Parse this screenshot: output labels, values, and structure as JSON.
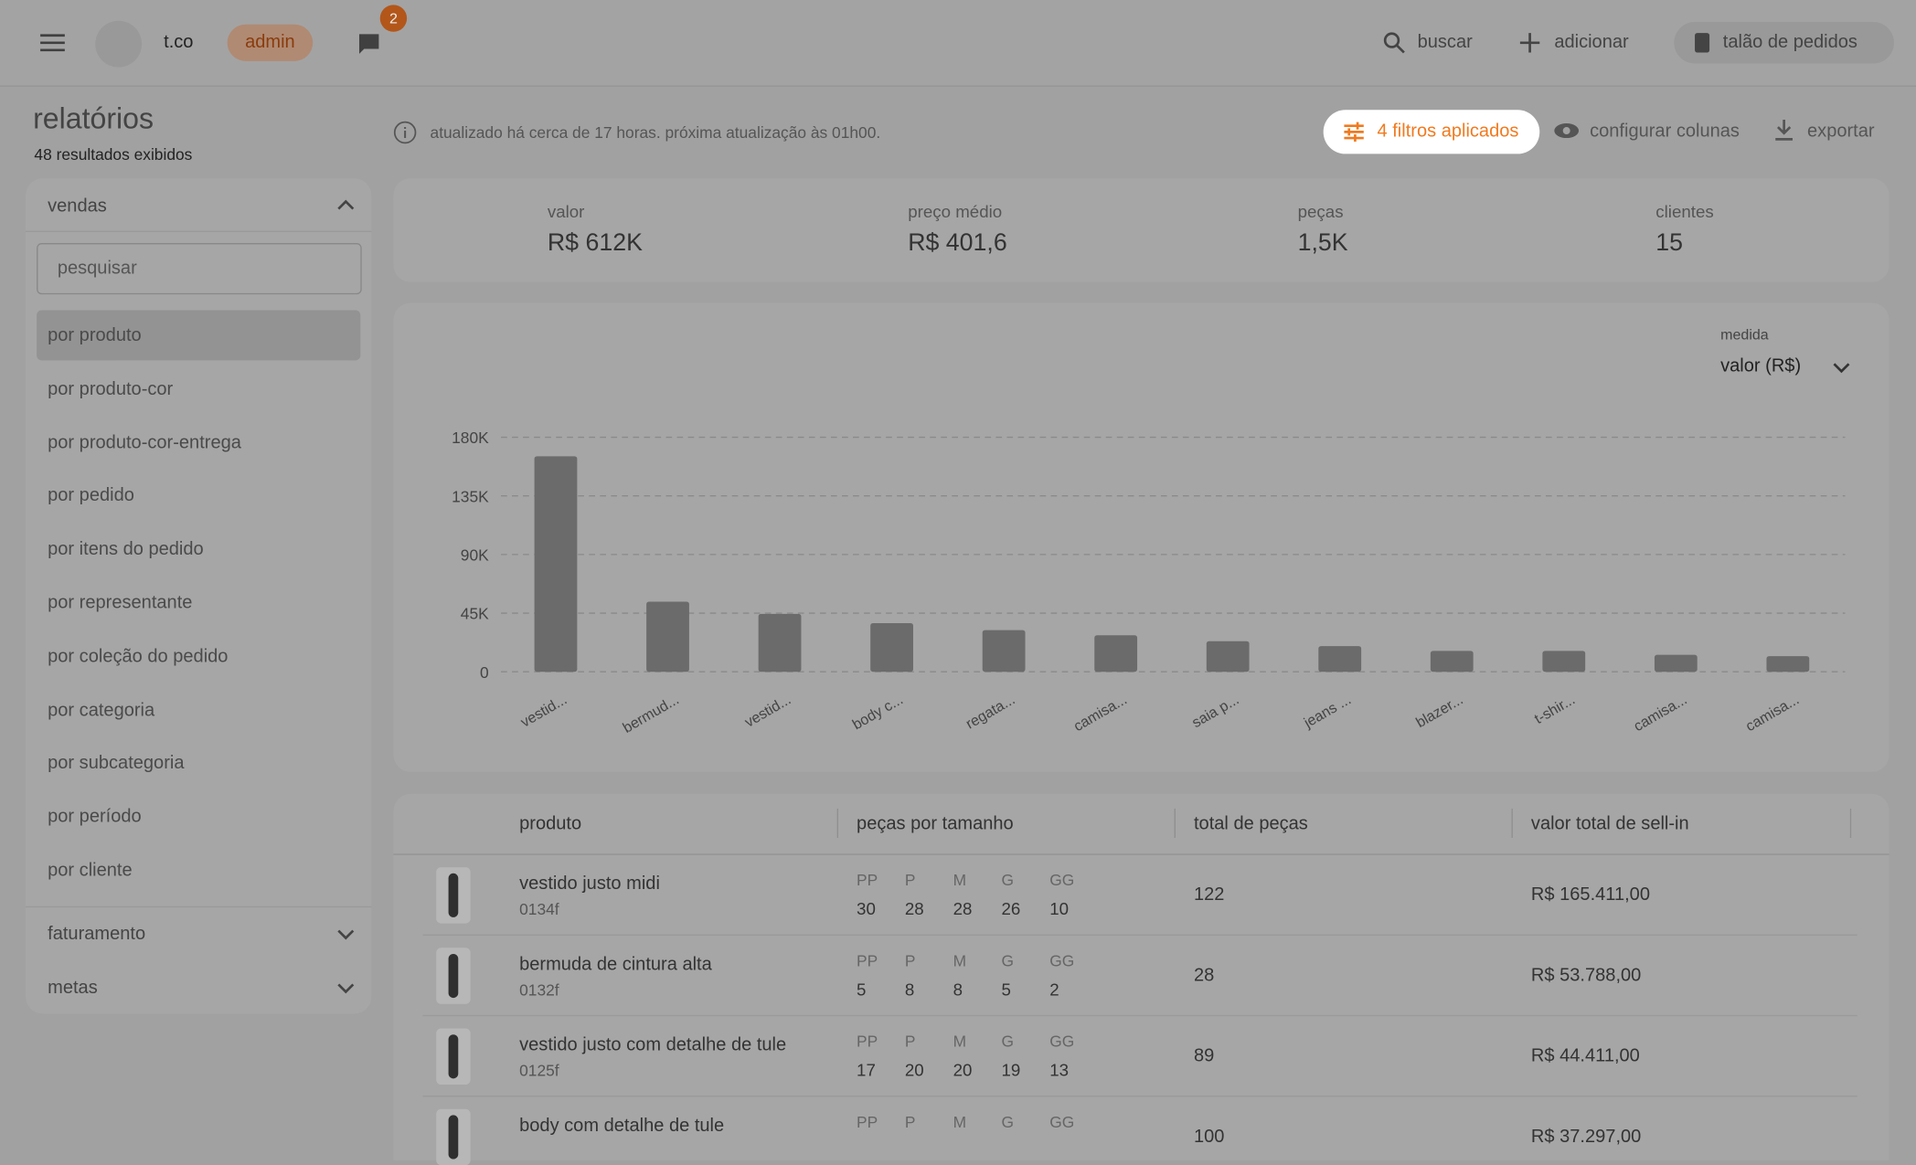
{
  "header": {
    "brand": "t.co",
    "role": "admin",
    "notifications": "2",
    "actions": [
      "buscar",
      "adicionar",
      "talão de pedidos"
    ]
  },
  "page": {
    "title": "relatórios",
    "subtitle": "48 resultados exibidos",
    "status": "atualizado há cerca de 17 horas. próxima atualização às 01h00.",
    "actions": [
      "4 filtros aplicados",
      "configurar colunas",
      "exportar"
    ]
  },
  "sidebar": {
    "sections": [
      {
        "title": "vendas",
        "search_placeholder": "pesquisar",
        "items": [
          "por produto",
          "por produto-cor",
          "por produto-cor-entrega",
          "por pedido",
          "por itens do pedido",
          "por representante",
          "por coleção do pedido",
          "por categoria",
          "por subcategoria",
          "por período",
          "por cliente"
        ]
      },
      {
        "title": "faturamento"
      },
      {
        "title": "metas"
      }
    ]
  },
  "stats": [
    {
      "label": "valor",
      "value": "R$ 612K"
    },
    {
      "label": "preço médio",
      "value": "R$ 401,6"
    },
    {
      "label": "peças",
      "value": "1,5K"
    },
    {
      "label": "clientes",
      "value": "15"
    }
  ],
  "chart_data": {
    "type": "bar",
    "measure_label": "medida",
    "measure": "valor (R$)",
    "categories": [
      "vestid...",
      "bermud...",
      "vestid...",
      "body c...",
      "regata...",
      "camisa...",
      "saia p...",
      "jeans ...",
      "blazer...",
      "t-shir...",
      "camisa...",
      "camisa..."
    ],
    "values": [
      165411,
      53788,
      44411,
      37297,
      32000,
      28000,
      23500,
      19700,
      16000,
      16000,
      13000,
      12000
    ],
    "color": "#6b6b6b",
    "ylim": [
      0,
      180000
    ],
    "yticks": [
      0,
      {
        "value": 45000,
        "label": "45K"
      },
      {
        "value": 90000,
        "label": "90K"
      },
      {
        "value": 135000,
        "label": "135K"
      },
      {
        "value": 180000,
        "label": "180K"
      }
    ],
    "grid": true
  },
  "table": {
    "columns": [
      "produto",
      "peças por tamanho",
      "total de peças",
      "valor total de sell-in"
    ],
    "sizes": [
      "PP",
      "P",
      "M",
      "G",
      "GG"
    ],
    "rows": [
      {
        "name": "vestido justo midi",
        "code": "0134f",
        "size_counts": [
          30,
          28,
          28,
          26,
          10
        ],
        "total": "122",
        "value": "R$ 165.411,00"
      },
      {
        "name": "bermuda de cintura alta",
        "code": "0132f",
        "size_counts": [
          5,
          8,
          8,
          5,
          2
        ],
        "total": "28",
        "value": "R$ 53.788,00"
      },
      {
        "name": "vestido justo com detalhe de tule",
        "code": "0125f",
        "size_counts": [
          17,
          20,
          20,
          19,
          13
        ],
        "total": "89",
        "value": "R$ 44.411,00"
      },
      {
        "name": "body com detalhe de tule",
        "total": "100",
        "value": "R$ 37.297,00"
      }
    ]
  }
}
